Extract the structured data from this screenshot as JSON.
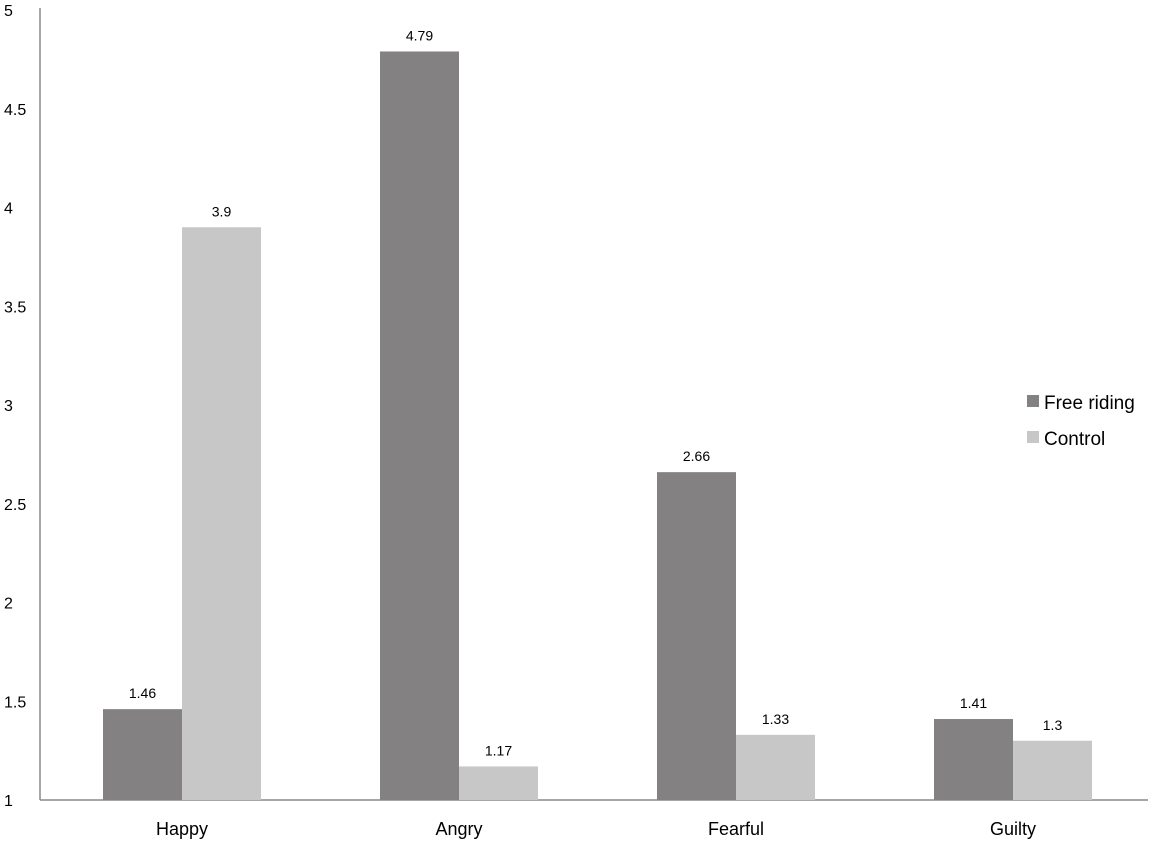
{
  "chart_data": {
    "type": "bar",
    "categories": [
      "Happy",
      "Angry",
      "Fearful",
      "Guilty"
    ],
    "series": [
      {
        "name": "Free riding",
        "values": [
          1.46,
          4.79,
          2.66,
          1.41
        ],
        "color": "#838182"
      },
      {
        "name": "Control",
        "values": [
          3.9,
          1.17,
          1.33,
          1.3
        ],
        "color": "#c8c7c8"
      }
    ],
    "data_labels": [
      [
        "1.46",
        "4.79",
        "2.66",
        "1.41"
      ],
      [
        "3.9",
        "1.17",
        "1.33",
        "1.3"
      ]
    ],
    "yticks": [
      "1",
      "1.5",
      "2",
      "2.5",
      "3",
      "3.5",
      "4",
      "4.5",
      "5"
    ],
    "ylim": [
      1,
      5
    ],
    "grid": false,
    "legend_position": "right",
    "title": "",
    "xlabel": "",
    "ylabel": ""
  }
}
